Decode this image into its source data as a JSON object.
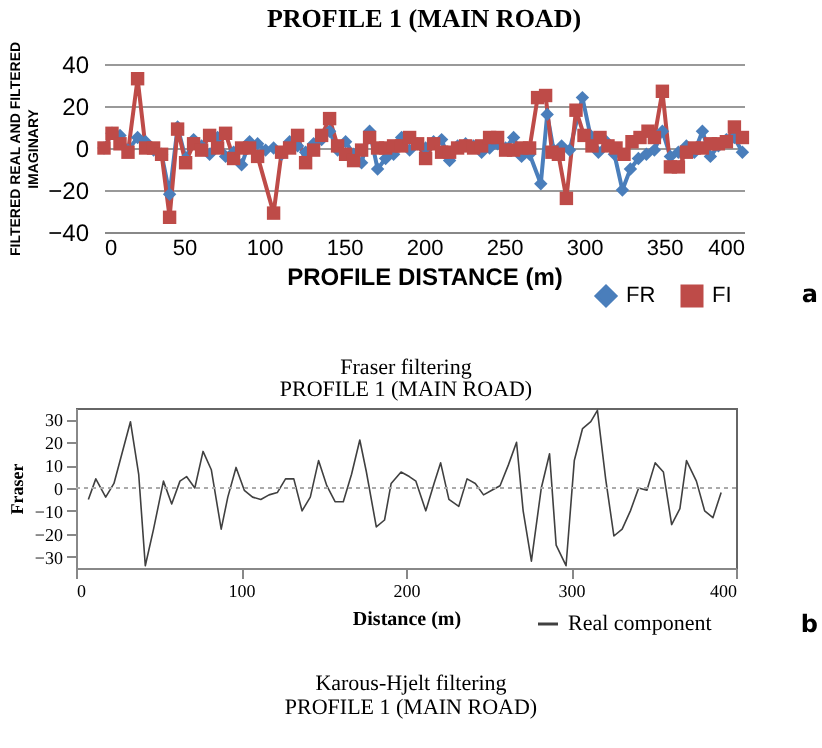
{
  "chart_data": [
    {
      "type": "line",
      "title": "PROFILE 1 (MAIN ROAD)",
      "xlabel": "PROFILE DISTANCE (m)",
      "ylabel": "FILTERED REAL AND FILTERED IMAGINARY",
      "xlim": [
        0,
        400
      ],
      "xticks": [
        0,
        50,
        100,
        150,
        200,
        250,
        300,
        350,
        400
      ],
      "ylim": [
        -40,
        40
      ],
      "yticks": [
        -40,
        -20,
        0,
        20,
        40
      ],
      "grid": "y",
      "legend": "bottom right",
      "annotations": [
        "a"
      ],
      "series": [
        {
          "name": "FR",
          "color": "#4a7ebb",
          "marker": "diamond",
          "x": [
            0,
            5,
            10,
            15,
            21,
            26,
            31,
            36,
            41,
            46,
            51,
            56,
            61,
            66,
            71,
            76,
            81,
            86,
            91,
            96,
            101,
            106,
            111,
            116,
            121,
            126,
            131,
            136,
            141,
            146,
            151,
            156,
            161,
            166,
            171,
            176,
            181,
            186,
            191,
            196,
            201,
            206,
            211,
            216,
            221,
            226,
            231,
            236,
            241,
            246,
            251,
            256,
            261,
            266,
            273,
            277,
            281,
            286,
            291,
            299,
            304,
            309,
            314,
            319,
            324,
            329,
            334,
            339,
            344,
            349,
            354,
            359,
            364,
            369,
            374,
            379,
            384,
            389,
            394,
            399
          ],
          "values": [
            0,
            7,
            6,
            -1,
            5,
            3,
            -1,
            -3,
            -22,
            10,
            -5,
            4,
            1,
            -3,
            5,
            -4,
            -2,
            -8,
            3,
            2,
            -1,
            0,
            -3,
            3,
            1,
            -2,
            2,
            4,
            8,
            -1,
            3,
            -3,
            -7,
            8,
            -10,
            -5,
            -3,
            5,
            -1,
            2,
            0,
            3,
            4,
            -6,
            1,
            2,
            1,
            -2,
            0,
            2,
            0,
            5,
            -4,
            -3,
            -17,
            16,
            -1,
            1,
            -1,
            24,
            6,
            -2,
            3,
            -3,
            -20,
            -10,
            -5,
            -3,
            -1,
            8,
            -4,
            -2,
            1,
            -2,
            8,
            -4,
            1,
            4,
            5,
            -2
          ]
        },
        {
          "name": "FI",
          "color": "#be4b48",
          "marker": "square",
          "x": [
            0,
            5,
            10,
            15,
            21,
            26,
            31,
            36,
            41,
            46,
            51,
            56,
            61,
            66,
            71,
            76,
            81,
            86,
            91,
            96,
            106,
            111,
            116,
            121,
            126,
            131,
            136,
            141,
            146,
            151,
            156,
            161,
            166,
            171,
            176,
            181,
            186,
            191,
            196,
            201,
            206,
            211,
            216,
            221,
            226,
            231,
            236,
            241,
            246,
            251,
            256,
            261,
            266,
            271,
            276,
            280,
            284,
            289,
            295,
            300,
            305,
            310,
            315,
            320,
            325,
            330,
            335,
            340,
            344,
            349,
            354,
            359,
            364,
            369,
            374,
            379,
            384,
            389,
            394,
            399
          ],
          "values": [
            0,
            7,
            2,
            -2,
            33,
            0,
            0,
            -3,
            -33,
            9,
            -7,
            2,
            -1,
            6,
            0,
            7,
            -5,
            0,
            0,
            -4,
            -31,
            -2,
            0,
            6,
            -7,
            -1,
            6,
            14,
            1,
            -3,
            -6,
            -1,
            5,
            0,
            0,
            1,
            1,
            5,
            2,
            -5,
            2,
            -2,
            -2,
            0,
            1,
            0,
            1,
            5,
            5,
            -1,
            -1,
            0,
            0,
            24,
            25,
            -2,
            -3,
            -24,
            18,
            6,
            1,
            5,
            1,
            0,
            -3,
            3,
            5,
            8,
            5,
            27,
            -9,
            -9,
            -2,
            0,
            0,
            2,
            2,
            3,
            10,
            5
          ]
        }
      ]
    },
    {
      "type": "line",
      "title": "Fraser filtering",
      "subtitle": "PROFILE 1 (MAIN ROAD)",
      "xlabel": "Distance (m)",
      "ylabel": "Fraser",
      "xlim": [
        0,
        400
      ],
      "xticks": [
        0,
        100,
        200,
        300,
        400
      ],
      "ylim": [
        -35,
        35
      ],
      "yticks": [
        -30,
        -20,
        -10,
        0,
        10,
        20,
        30
      ],
      "grid": false,
      "legend": "bottom right",
      "ref_lines": [
        {
          "axis": "y",
          "value": 0,
          "line_style": "dotted",
          "color": "#aaaaaa"
        }
      ],
      "annotations": [
        "Karous-Hjelt filtering",
        "PROFILE 1 (MAIN ROAD)",
        "b"
      ],
      "series": [
        {
          "name": "Real component",
          "color": "#404040",
          "marker": "none",
          "x": [
            7.5,
            12,
            18,
            23,
            33,
            38,
            42,
            47,
            53,
            58,
            63,
            67,
            72,
            77,
            82,
            88,
            92,
            97,
            102,
            107,
            112,
            117,
            122,
            127,
            132,
            137,
            142,
            147,
            152,
            157,
            162,
            167,
            172,
            176,
            182,
            187,
            191,
            197,
            202,
            206,
            212,
            217,
            221,
            226,
            232,
            237,
            242,
            247,
            252,
            257,
            262,
            267,
            271,
            276,
            282,
            287,
            291,
            297,
            302,
            307,
            312,
            316,
            321,
            326,
            331,
            336,
            341,
            346,
            351,
            356,
            361,
            366,
            370,
            376,
            381,
            386,
            391
          ],
          "values": [
            -5,
            4,
            -4,
            2,
            29,
            6,
            -34,
            -18,
            3,
            -7,
            3,
            5,
            0,
            16,
            8,
            -18,
            -4,
            9,
            -1,
            -4,
            -5,
            -3,
            -2,
            4,
            4,
            -10,
            -4,
            12,
            1,
            -6,
            -6,
            6,
            21,
            7,
            -17,
            -14,
            2,
            7,
            5,
            3,
            -10,
            2,
            11,
            -5,
            -8,
            4,
            2,
            -3,
            -1,
            1,
            10,
            20,
            -10,
            -32,
            0,
            15,
            -25,
            -34,
            12,
            26,
            29,
            34,
            4,
            -21,
            -18,
            -10,
            0,
            -1,
            11,
            7,
            -16,
            -9,
            12,
            3,
            -10,
            -13,
            -2
          ]
        }
      ]
    }
  ]
}
